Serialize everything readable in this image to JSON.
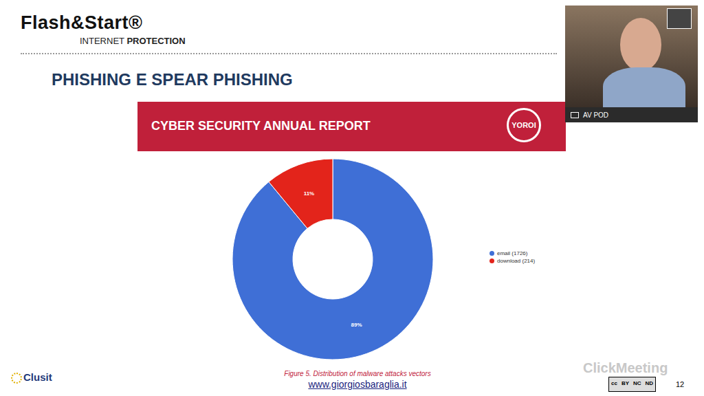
{
  "slide": {
    "logo": "Flash&Start®",
    "logo_subtitle": [
      "INTERNET",
      "PROTECTION"
    ],
    "heading": "PHISHING E SPEAR PHISHING",
    "banner": "CYBER SECURITY ANNUAL REPORT",
    "banner_badge": "YOROI",
    "link": "www.giorgiosbaraglia.it",
    "page": "12",
    "webcam_label": "AV POD",
    "watermark": "ClickMeeting",
    "footer_logo": "Clusit",
    "license": [
      "cc",
      "BY",
      "NC",
      "ND"
    ]
  },
  "chart_data": {
    "type": "pie",
    "title": "Figure 5. Distribution of malware attacks vectors",
    "categories": [
      "email (1726)",
      "download (214)"
    ],
    "values": [
      89,
      11
    ],
    "value_labels": [
      "89%",
      "11%"
    ],
    "colors": [
      "#3f6fd6",
      "#e3241b"
    ],
    "data_labels": true,
    "legend": "right"
  }
}
